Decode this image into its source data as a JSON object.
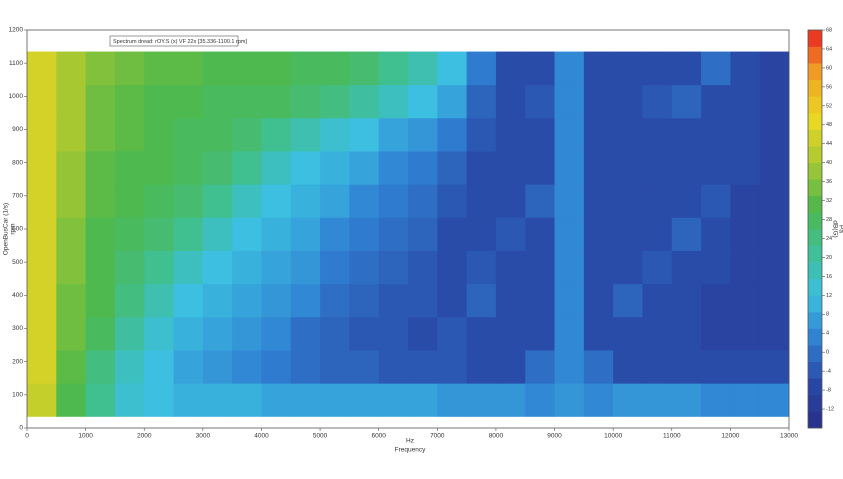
{
  "chart_data": {
    "type": "heatmap",
    "title": "Spectrum dread: rOY.S (x) VF 22x [35.336-1100.1 rpm]",
    "x_label": "Hz",
    "x_label2": "Frequency",
    "y_label": "OpenBusCar (1/s)",
    "y_label2": "rpm",
    "colorbar_label": "dB(G)",
    "colorbar_label2": "Pa",
    "xbins": [
      0,
      500,
      1000,
      1500,
      2000,
      2500,
      3000,
      3500,
      4000,
      4500,
      5000,
      5500,
      6000,
      6500,
      7000,
      7500,
      8000,
      8500,
      9000,
      9500,
      10000,
      10500,
      11000,
      11500,
      12000,
      12500,
      13000
    ],
    "ybins": [
      35,
      135,
      235,
      335,
      435,
      535,
      635,
      735,
      835,
      935,
      1035,
      1135
    ],
    "z": [
      [
        44,
        30,
        22,
        14,
        12,
        10,
        10,
        10,
        8,
        8,
        8,
        8,
        8,
        8,
        6,
        6,
        6,
        4,
        6,
        4,
        6,
        6,
        6,
        4,
        4,
        4
      ],
      [
        46,
        32,
        24,
        16,
        12,
        8,
        6,
        4,
        2,
        0,
        -2,
        -2,
        -4,
        -4,
        -4,
        -6,
        -6,
        0,
        4,
        0,
        -6,
        -6,
        -6,
        -6,
        -6,
        -6
      ],
      [
        46,
        34,
        28,
        20,
        14,
        10,
        8,
        6,
        4,
        0,
        -2,
        -4,
        -4,
        -6,
        -4,
        -6,
        -6,
        -6,
        4,
        -6,
        -6,
        -6,
        -6,
        -8,
        -8,
        -8
      ],
      [
        46,
        34,
        30,
        24,
        18,
        12,
        10,
        8,
        6,
        4,
        0,
        -2,
        -4,
        -4,
        -6,
        -2,
        -6,
        -6,
        4,
        -6,
        -2,
        -6,
        -6,
        -8,
        -8,
        -8
      ],
      [
        46,
        36,
        30,
        26,
        22,
        16,
        12,
        10,
        8,
        6,
        2,
        0,
        -2,
        -4,
        -6,
        -4,
        -6,
        -6,
        4,
        -6,
        -6,
        -4,
        -6,
        -6,
        -8,
        -8
      ],
      [
        46,
        36,
        30,
        28,
        26,
        22,
        16,
        12,
        10,
        8,
        4,
        2,
        0,
        -2,
        -6,
        -6,
        -4,
        -6,
        4,
        -6,
        -6,
        -6,
        -2,
        -6,
        -8,
        -8
      ],
      [
        46,
        38,
        32,
        30,
        28,
        26,
        22,
        16,
        12,
        10,
        8,
        4,
        2,
        0,
        -4,
        -6,
        -6,
        -2,
        4,
        -6,
        -6,
        -6,
        -6,
        -4,
        -8,
        -8
      ],
      [
        46,
        38,
        32,
        30,
        30,
        28,
        26,
        22,
        16,
        12,
        10,
        8,
        4,
        2,
        -2,
        -6,
        -6,
        -6,
        4,
        -6,
        -6,
        -6,
        -6,
        -6,
        -6,
        -8
      ],
      [
        46,
        40,
        34,
        32,
        30,
        28,
        28,
        26,
        22,
        18,
        14,
        12,
        8,
        6,
        2,
        -4,
        -6,
        -6,
        4,
        -6,
        -6,
        -6,
        -6,
        -6,
        -6,
        -8
      ],
      [
        46,
        40,
        34,
        32,
        30,
        30,
        28,
        28,
        28,
        26,
        24,
        20,
        16,
        12,
        8,
        -2,
        -6,
        -4,
        4,
        -6,
        -6,
        -4,
        -2,
        -6,
        -6,
        -8
      ],
      [
        46,
        40,
        36,
        34,
        32,
        32,
        30,
        30,
        30,
        28,
        28,
        26,
        22,
        18,
        12,
        2,
        -6,
        -6,
        4,
        -6,
        -6,
        -6,
        -6,
        0,
        -6,
        -8
      ]
    ],
    "xlim": [
      0,
      13000
    ],
    "xticks": [
      0,
      1000,
      2000,
      3000,
      4000,
      5000,
      6000,
      7000,
      8000,
      9000,
      10000,
      11000,
      12000,
      13000
    ],
    "ylim": [
      0,
      1200
    ],
    "yticks": [
      0,
      100,
      200,
      300,
      400,
      500,
      600,
      700,
      800,
      900,
      1000,
      1100,
      1200
    ],
    "clim": [
      -16,
      68
    ],
    "cticks": [
      -12,
      -8,
      -4,
      0,
      4,
      8,
      12,
      16,
      20,
      24,
      28,
      32,
      36,
      40,
      44,
      48,
      52,
      56,
      60,
      64,
      68
    ],
    "colorscale": [
      "#262e86",
      "#2a48a6",
      "#2f7fd2",
      "#3cbfe0",
      "#3fbf95",
      "#4fb84a",
      "#a8c832",
      "#ecd822",
      "#f0a424",
      "#e82222"
    ]
  }
}
